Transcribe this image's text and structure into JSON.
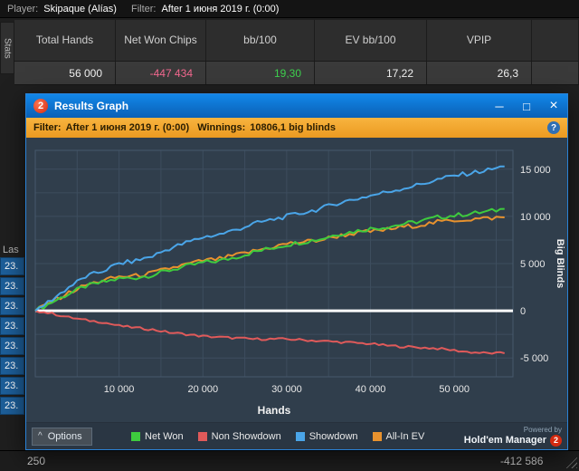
{
  "app": {
    "topbar": {
      "player_label": "Player:",
      "player_value": "Skipaque (Alías)",
      "filter_label": "Filter:",
      "filter_value": "After 1 июня 2019 г. (0:00)"
    },
    "stats_tab_label": "Stats",
    "stats_table": {
      "columns": [
        "Total Hands",
        "Net Won Chips",
        "bb/100",
        "EV bb/100",
        "VPIP",
        ""
      ],
      "values": [
        "56 000",
        "-447 434",
        "19,30",
        "17,22",
        "26,3",
        ""
      ],
      "value_colors": [
        "#f0f0f0",
        "#f2688f",
        "#3ed14e",
        "#f0f0f0",
        "#f0f0f0",
        "#f0f0f0"
      ]
    },
    "left_panel": {
      "header": "Las",
      "rows": [
        "23.",
        "23.",
        "23.",
        "23.",
        "23.",
        "23.",
        "23.",
        "23."
      ]
    },
    "status_bar": {
      "left_value": "250",
      "right_value": "-412 586"
    }
  },
  "dialog": {
    "title": "Results Graph",
    "logo_text": "2",
    "window_buttons": {
      "minimize": "─",
      "maximize": "□",
      "close": "×"
    },
    "filter_bar": {
      "filter_label": "Filter:",
      "filter_value": "After 1 июня 2019 г. (0:00)",
      "winnings_label": "Winnings:",
      "winnings_value": "10806,1 big blinds",
      "help_glyph": "?"
    },
    "options_button": {
      "chevron": "^",
      "label": "Options"
    },
    "powered_by": {
      "line1": "Powered by",
      "brand": "Hold'em Manager",
      "logo_text": "2"
    }
  },
  "chart_data": {
    "type": "line",
    "title": "Results Graph",
    "xlabel": "Hands",
    "ylabel": "Big Blinds",
    "xlim": [
      0,
      57000
    ],
    "ylim": [
      -7000,
      17000
    ],
    "xticks": [
      10000,
      20000,
      30000,
      40000,
      50000
    ],
    "xtick_labels": [
      "10 000",
      "20 000",
      "30 000",
      "40 000",
      "50 000"
    ],
    "yticks": [
      -5000,
      0,
      5000,
      10000,
      15000
    ],
    "ytick_labels": [
      "-5 000",
      "0",
      "5 000",
      "10 000",
      "15 000"
    ],
    "x_minor_step": 5000,
    "y_minor_step": 2500,
    "grid": true,
    "legend_position": "bottom",
    "zero_line_color": "#ffffff",
    "x": [
      0,
      2000,
      4000,
      6000,
      8000,
      10000,
      12000,
      14000,
      16000,
      18000,
      20000,
      22000,
      24000,
      26000,
      28000,
      30000,
      32000,
      34000,
      36000,
      38000,
      40000,
      42000,
      44000,
      46000,
      48000,
      50000,
      52000,
      54000,
      56000
    ],
    "series": [
      {
        "name": "Net Won",
        "color": "#3ecb3e",
        "values": [
          0,
          900,
          1800,
          2600,
          3000,
          3400,
          3500,
          3800,
          4300,
          4700,
          5100,
          5300,
          5700,
          6200,
          6600,
          7000,
          7300,
          7600,
          8100,
          8400,
          8700,
          8900,
          9200,
          9500,
          9900,
          10100,
          10300,
          10500,
          10800
        ]
      },
      {
        "name": "Non Showdown",
        "color": "#e05a5a",
        "values": [
          0,
          -300,
          -700,
          -1000,
          -1200,
          -1600,
          -1800,
          -2000,
          -2300,
          -2500,
          -2700,
          -2800,
          -2900,
          -3000,
          -3000,
          -3000,
          -3100,
          -3200,
          -3300,
          -3400,
          -3500,
          -3700,
          -3800,
          -3900,
          -4000,
          -4200,
          -4400,
          -4500,
          -4500
        ]
      },
      {
        "name": "Showdown",
        "color": "#4aa5e8",
        "values": [
          0,
          1200,
          2500,
          3600,
          4200,
          5000,
          5300,
          5800,
          6600,
          7200,
          7800,
          8100,
          8600,
          9200,
          9600,
          10000,
          10400,
          10800,
          11400,
          11800,
          12200,
          12600,
          13000,
          13400,
          13900,
          14300,
          14600,
          14900,
          15300
        ]
      },
      {
        "name": "All-In EV",
        "color": "#e8922e",
        "values": [
          0,
          1000,
          1900,
          2700,
          3200,
          3600,
          3700,
          4000,
          4500,
          4900,
          5300,
          5500,
          5900,
          6300,
          6700,
          7100,
          7300,
          7500,
          7900,
          8200,
          8400,
          8600,
          8900,
          9100,
          9400,
          9600,
          9700,
          9800,
          9900
        ]
      }
    ]
  }
}
